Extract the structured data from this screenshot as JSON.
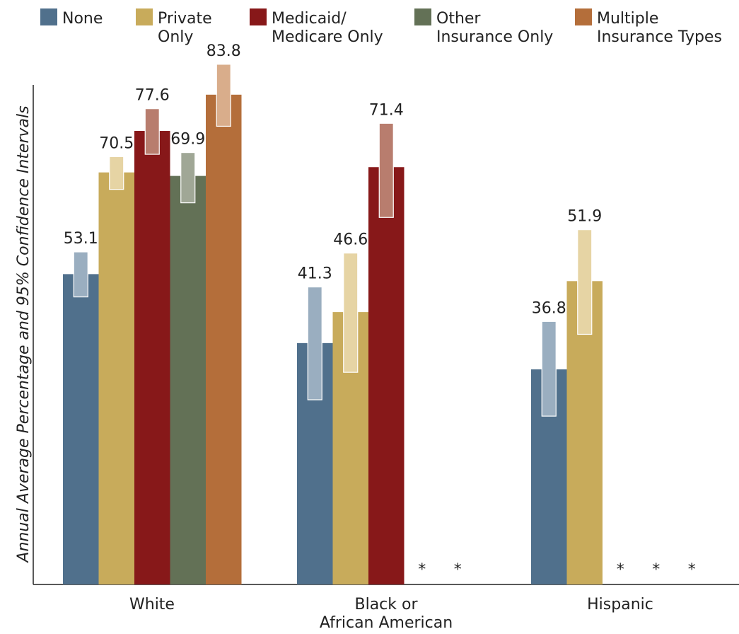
{
  "chart_data": {
    "type": "bar",
    "ylabel": "Annual Average Percentage and 95% Confidence Intervals",
    "ylim": [
      0,
      100
    ],
    "grid": false,
    "legend_position": "top",
    "categories": [
      [
        "White"
      ],
      [
        "Black or",
        "African American"
      ],
      [
        "Hispanic"
      ]
    ],
    "series": [
      {
        "name": [
          "None"
        ],
        "color": "#50708c",
        "ci_color": "#9aaec0",
        "values": [
          53.1,
          41.3,
          36.8
        ],
        "ci": [
          [
            49.2,
            56.9
          ],
          [
            31.6,
            50.9
          ],
          [
            28.8,
            45.0
          ]
        ]
      },
      {
        "name": [
          "Private",
          "Only"
        ],
        "color": "#c8ab5b",
        "ci_color": "#e6d4a4",
        "values": [
          70.5,
          46.6,
          51.9
        ],
        "ci": [
          [
            67.6,
            73.2
          ],
          [
            36.3,
            56.7
          ],
          [
            42.8,
            60.7
          ]
        ]
      },
      {
        "name": [
          "Medicaid/",
          "Medicare Only"
        ],
        "color": "#871819",
        "ci_color": "#b87d6e",
        "values": [
          77.6,
          71.4,
          null
        ],
        "ci": [
          [
            73.6,
            81.4
          ],
          [
            62.8,
            78.9
          ],
          null
        ]
      },
      {
        "name": [
          "Other",
          "Insurance Only"
        ],
        "color": "#637156",
        "ci_color": "#a0a796",
        "values": [
          69.9,
          null,
          null
        ],
        "ci": [
          [
            65.3,
            73.9
          ],
          null,
          null
        ]
      },
      {
        "name": [
          "Multiple",
          "Insurance Types"
        ],
        "color": "#b46e3a",
        "ci_color": "#d9ad8b",
        "values": [
          83.8,
          null,
          null
        ],
        "ci": [
          [
            78.4,
            89.0
          ],
          null,
          null
        ]
      }
    ],
    "suppressed_marker": "*"
  }
}
